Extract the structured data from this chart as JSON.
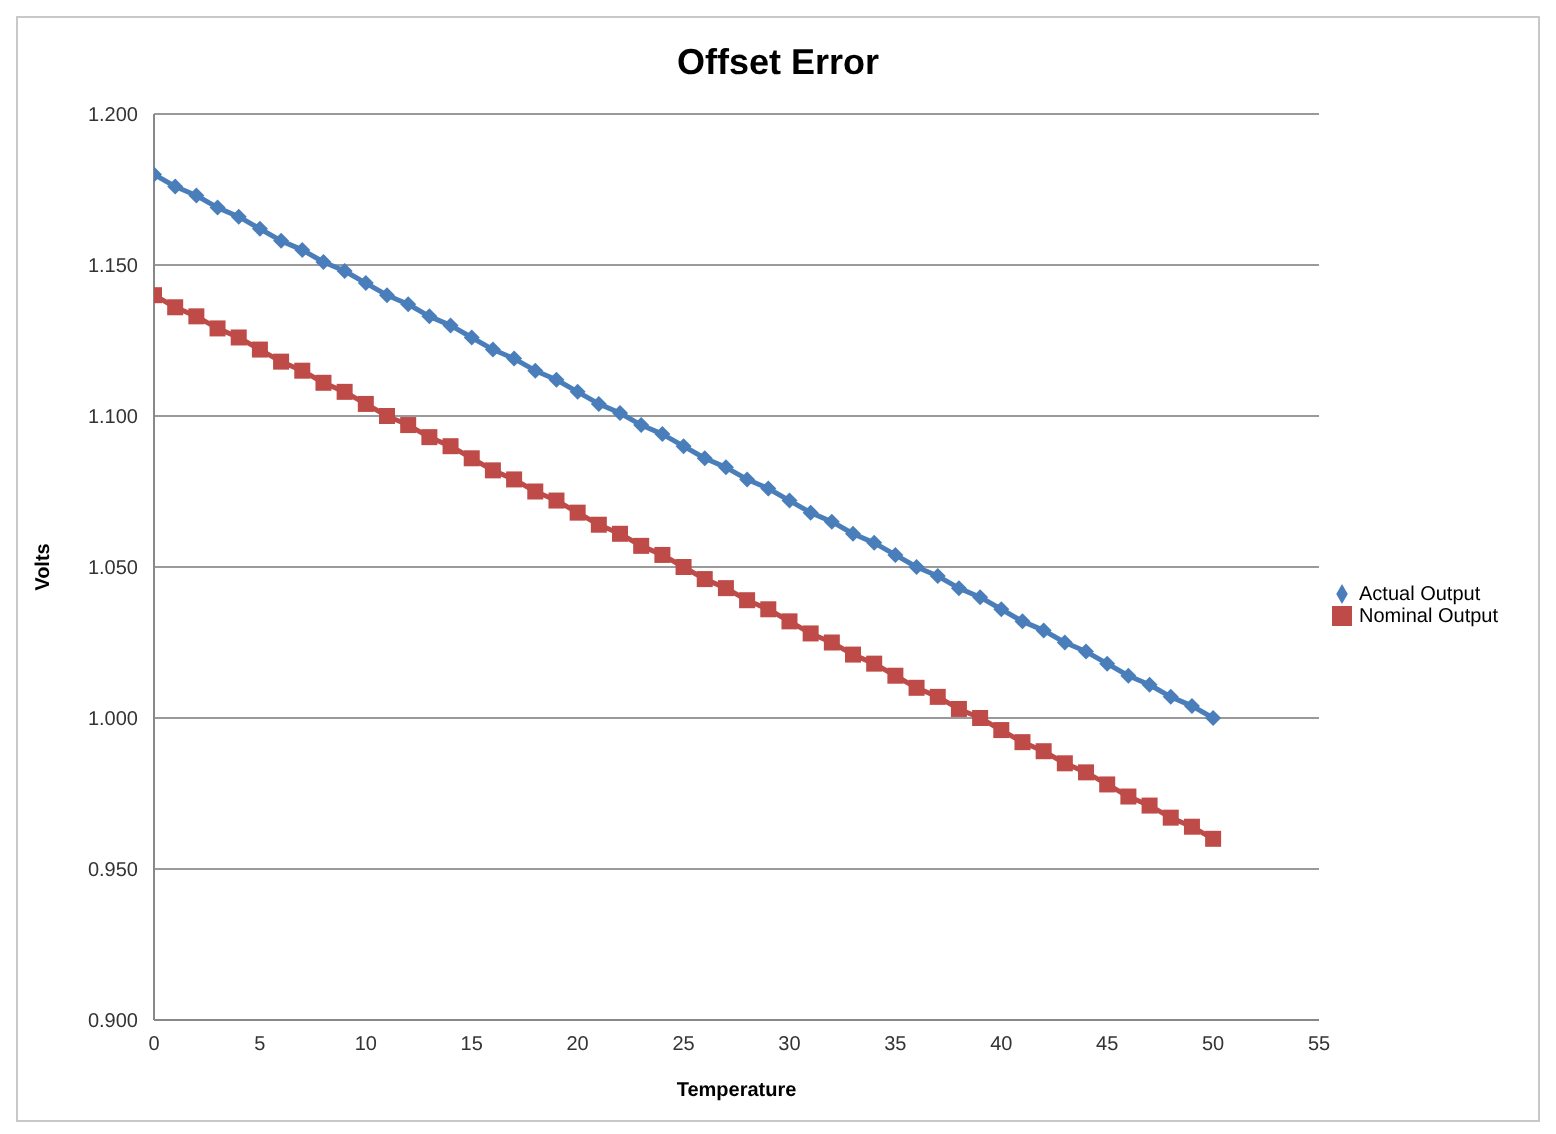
{
  "chart_data": {
    "type": "line",
    "title": "Offset Error",
    "xlabel": "Temperature",
    "ylabel": "Volts",
    "x": [
      0,
      1,
      2,
      3,
      4,
      5,
      6,
      7,
      8,
      9,
      10,
      11,
      12,
      13,
      14,
      15,
      16,
      17,
      18,
      19,
      20,
      21,
      22,
      23,
      24,
      25,
      26,
      27,
      28,
      29,
      30,
      31,
      32,
      33,
      34,
      35,
      36,
      37,
      38,
      39,
      40,
      41,
      42,
      43,
      44,
      45,
      46,
      47,
      48,
      49,
      50
    ],
    "series": [
      {
        "name": "Actual Output",
        "color": "#4a7ebb",
        "marker": "diamond",
        "values": [
          1.18,
          1.176,
          1.173,
          1.169,
          1.166,
          1.162,
          1.158,
          1.155,
          1.151,
          1.148,
          1.144,
          1.14,
          1.137,
          1.133,
          1.13,
          1.126,
          1.122,
          1.119,
          1.115,
          1.112,
          1.108,
          1.104,
          1.101,
          1.097,
          1.094,
          1.09,
          1.086,
          1.083,
          1.079,
          1.076,
          1.072,
          1.068,
          1.065,
          1.061,
          1.058,
          1.054,
          1.05,
          1.047,
          1.043,
          1.04,
          1.036,
          1.032,
          1.029,
          1.025,
          1.022,
          1.018,
          1.014,
          1.011,
          1.007,
          1.004,
          1.0
        ]
      },
      {
        "name": "Nominal Output",
        "color": "#be4b48",
        "marker": "square",
        "values": [
          1.14,
          1.136,
          1.133,
          1.129,
          1.126,
          1.122,
          1.118,
          1.115,
          1.111,
          1.108,
          1.104,
          1.1,
          1.097,
          1.093,
          1.09,
          1.086,
          1.082,
          1.079,
          1.075,
          1.072,
          1.068,
          1.064,
          1.061,
          1.057,
          1.054,
          1.05,
          1.046,
          1.043,
          1.039,
          1.036,
          1.032,
          1.028,
          1.025,
          1.021,
          1.018,
          1.014,
          1.01,
          1.007,
          1.003,
          1.0,
          0.996,
          0.992,
          0.989,
          0.985,
          0.982,
          0.978,
          0.974,
          0.971,
          0.967,
          0.964,
          0.96
        ]
      }
    ],
    "xlim": [
      0,
      55
    ],
    "xticks": [
      0,
      5,
      10,
      15,
      20,
      25,
      30,
      35,
      40,
      45,
      50,
      55
    ],
    "ylim": [
      0.9,
      1.2
    ],
    "yticks": [
      {
        "value": 0.9,
        "label": "0.900"
      },
      {
        "value": 0.95,
        "label": "0.950"
      },
      {
        "value": 1.0,
        "label": "1.000"
      },
      {
        "value": 1.05,
        "label": "1.050"
      },
      {
        "value": 1.1,
        "label": "1.100"
      },
      {
        "value": 1.15,
        "label": "1.150"
      },
      {
        "value": 1.2,
        "label": "1.200"
      }
    ],
    "grid": "y",
    "legend": "right",
    "line_style": "solid"
  }
}
